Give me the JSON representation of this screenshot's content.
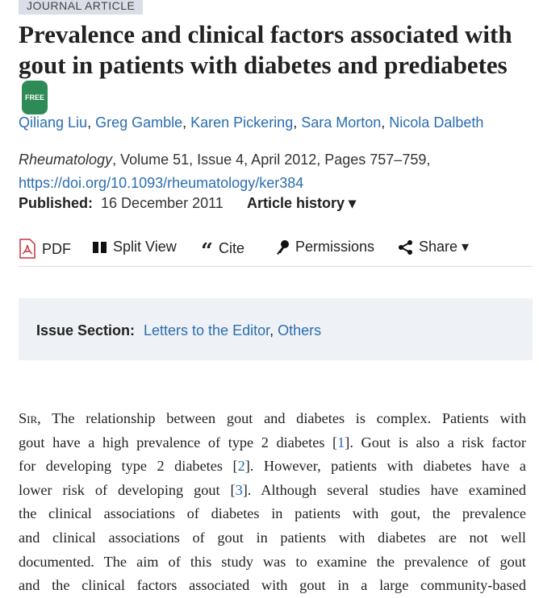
{
  "tag": "JOURNAL ARTICLE",
  "title": "Prevalence and clinical factors associated with gout in patients with diabetes and prediabetes",
  "free_badge": "FREE",
  "authors": [
    "Qiliang Liu",
    "Greg Gamble",
    "Karen Pickering",
    "Sara Morton",
    "Nicola Dalbeth"
  ],
  "citation": {
    "journal": "Rheumatology",
    "details": ", Volume 51, Issue 4, April 2012, Pages 757–759,",
    "doi": "https://doi.org/10.1093/rheumatology/ker384"
  },
  "published": {
    "label": "Published:",
    "date": "16 December 2011"
  },
  "article_history": "Article history ▾",
  "toolbar": {
    "pdf": "PDF",
    "split": "Split View",
    "cite": "Cite",
    "permissions": "Permissions",
    "share": "Share ▾"
  },
  "issue_section": {
    "label": "Issue Section:",
    "links": [
      "Letters to the Editor",
      "Others"
    ]
  },
  "body_lines": [
    {
      "sc": "Sir",
      "pre": ", The relationship between gout and diabetes is complex. Patients with"
    },
    {
      "pre": "gout have a high prevalence of type 2 diabetes [",
      "ref": "1",
      "post": "]. Gout is also a risk factor"
    },
    {
      "pre": "for developing type 2 diabetes [",
      "ref": "2",
      "post": "]. However, patients with diabetes have a"
    },
    {
      "pre": "lower risk of developing gout [",
      "ref": "3",
      "post": "]. Although several studies have examined"
    },
    {
      "pre": "the clinical associations of diabetes in patients with gout, the prevalence"
    },
    {
      "pre": "and clinical associations of gout in patients with diabetes are not well"
    },
    {
      "pre": "documented. The aim of this study was to examine the prevalence of gout"
    },
    {
      "pre": "and the clinical factors associated with gout in a large community-based"
    }
  ]
}
